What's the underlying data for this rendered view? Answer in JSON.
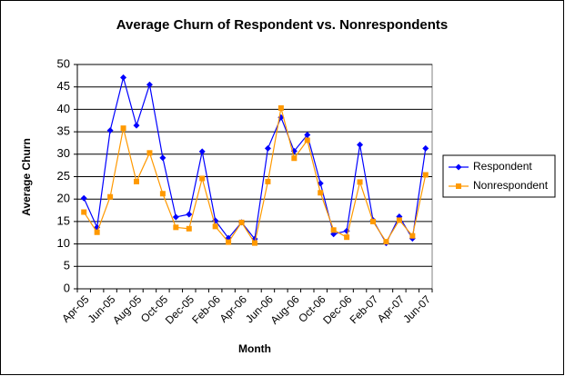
{
  "chart_data": {
    "type": "line",
    "title": "Average Churn of Respondent vs. Nonrespondents",
    "x_label": "Month",
    "y_label": "Average Churn",
    "categories": [
      "Apr-05",
      null,
      "Jun-05",
      null,
      "Aug-05",
      null,
      "Oct-05",
      null,
      "Dec-05",
      null,
      "Feb-06",
      null,
      "Apr-06",
      null,
      "Jun-06",
      null,
      "Aug-06",
      null,
      "Oct-06",
      null,
      "Dec-06",
      null,
      "Feb-07",
      null,
      "Apr-07",
      null,
      "Jun-07"
    ],
    "series": [
      {
        "name": "Respondent",
        "color": "#0000ff",
        "marker": "diamond",
        "values": [
          20.2,
          13.7,
          35.3,
          47.1,
          36.4,
          45.5,
          29.2,
          16.0,
          16.6,
          30.6,
          15.2,
          11.3,
          14.8,
          11.1,
          31.3,
          38.2,
          30.7,
          34.3,
          23.5,
          12.2,
          12.9,
          32.1,
          15.3,
          10.2,
          16.1,
          11.2,
          31.3
        ]
      },
      {
        "name": "Nonrespondent",
        "color": "#ff9900",
        "marker": "square",
        "values": [
          17.1,
          12.6,
          20.5,
          35.8,
          23.9,
          30.3,
          21.2,
          13.7,
          13.4,
          24.6,
          13.9,
          10.4,
          14.8,
          10.2,
          23.9,
          40.3,
          29.1,
          33.1,
          21.4,
          13.1,
          11.5,
          23.8,
          15.0,
          10.5,
          15.3,
          11.8,
          25.4
        ]
      }
    ],
    "ylim": [
      0,
      50
    ],
    "yticks": [
      0,
      5,
      10,
      15,
      20,
      25,
      30,
      35,
      40,
      45,
      50
    ],
    "grid": true,
    "legend": "right"
  }
}
